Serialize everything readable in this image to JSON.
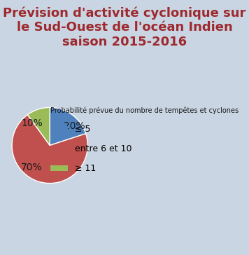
{
  "chart_data": {
    "type": "pie",
    "title": "Prévision d'activité cyclonique sur le Sud-Ouest de l'océan Indien saison 2015-2016",
    "legend_title": "Probabilité prévue du nombre de tempêtes et cyclones",
    "categories": [
      "≤ 5",
      "entre 6 et 10",
      "≥ 11"
    ],
    "values": [
      20,
      70,
      10
    ],
    "value_labels": [
      "20%",
      "70%",
      "10%"
    ],
    "colors": [
      "#4f81bd",
      "#c0504d",
      "#9bbb59"
    ],
    "data_labels": true,
    "legend": "center right"
  }
}
